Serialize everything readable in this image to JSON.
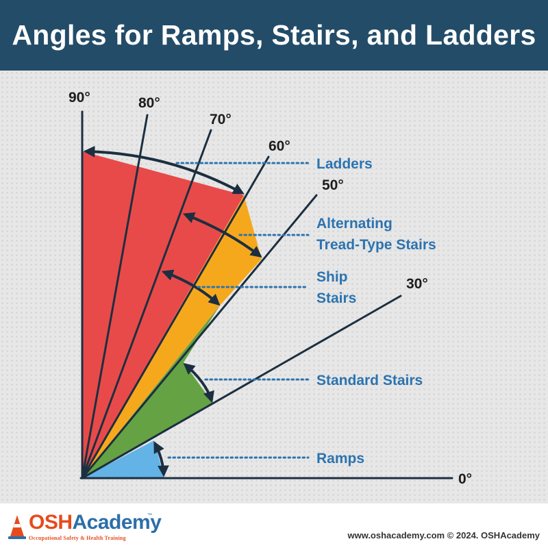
{
  "title": "Angles for Ramps, Stairs, and Ladders",
  "angle_ticks": [
    "90°",
    "80°",
    "70°",
    "60°",
    "50°",
    "30°",
    "0°"
  ],
  "categories": [
    {
      "key": "ladders",
      "lines": [
        "Ladders"
      ],
      "range_deg": [
        60,
        90
      ],
      "color": "#e84a4a"
    },
    {
      "key": "alternating",
      "lines": [
        "Alternating",
        "Tread-Type Stairs"
      ],
      "range_deg": [
        50,
        70
      ],
      "color": "#f6a81d"
    },
    {
      "key": "ship",
      "lines": [
        "Ship",
        "Stairs"
      ],
      "range_deg": [
        50,
        70
      ],
      "color": "#f6a81d"
    },
    {
      "key": "standard",
      "lines": [
        "Standard Stairs"
      ],
      "range_deg": [
        30,
        50
      ],
      "color": "#64a244"
    },
    {
      "key": "ramps",
      "lines": [
        "Ramps"
      ],
      "range_deg": [
        0,
        20
      ],
      "color": "#63b3e6"
    }
  ],
  "logo": {
    "brand_part1": "OSH",
    "brand_part2": "Academy",
    "trademark": "™",
    "tagline": "Occupational Safety & Health Training"
  },
  "footer_credit": "www.oshacademy.com © 2024. OSHAcademy",
  "colors": {
    "title_bar": "#234c68",
    "label_blue": "#2b73b0",
    "line": "#1c2f40"
  }
}
